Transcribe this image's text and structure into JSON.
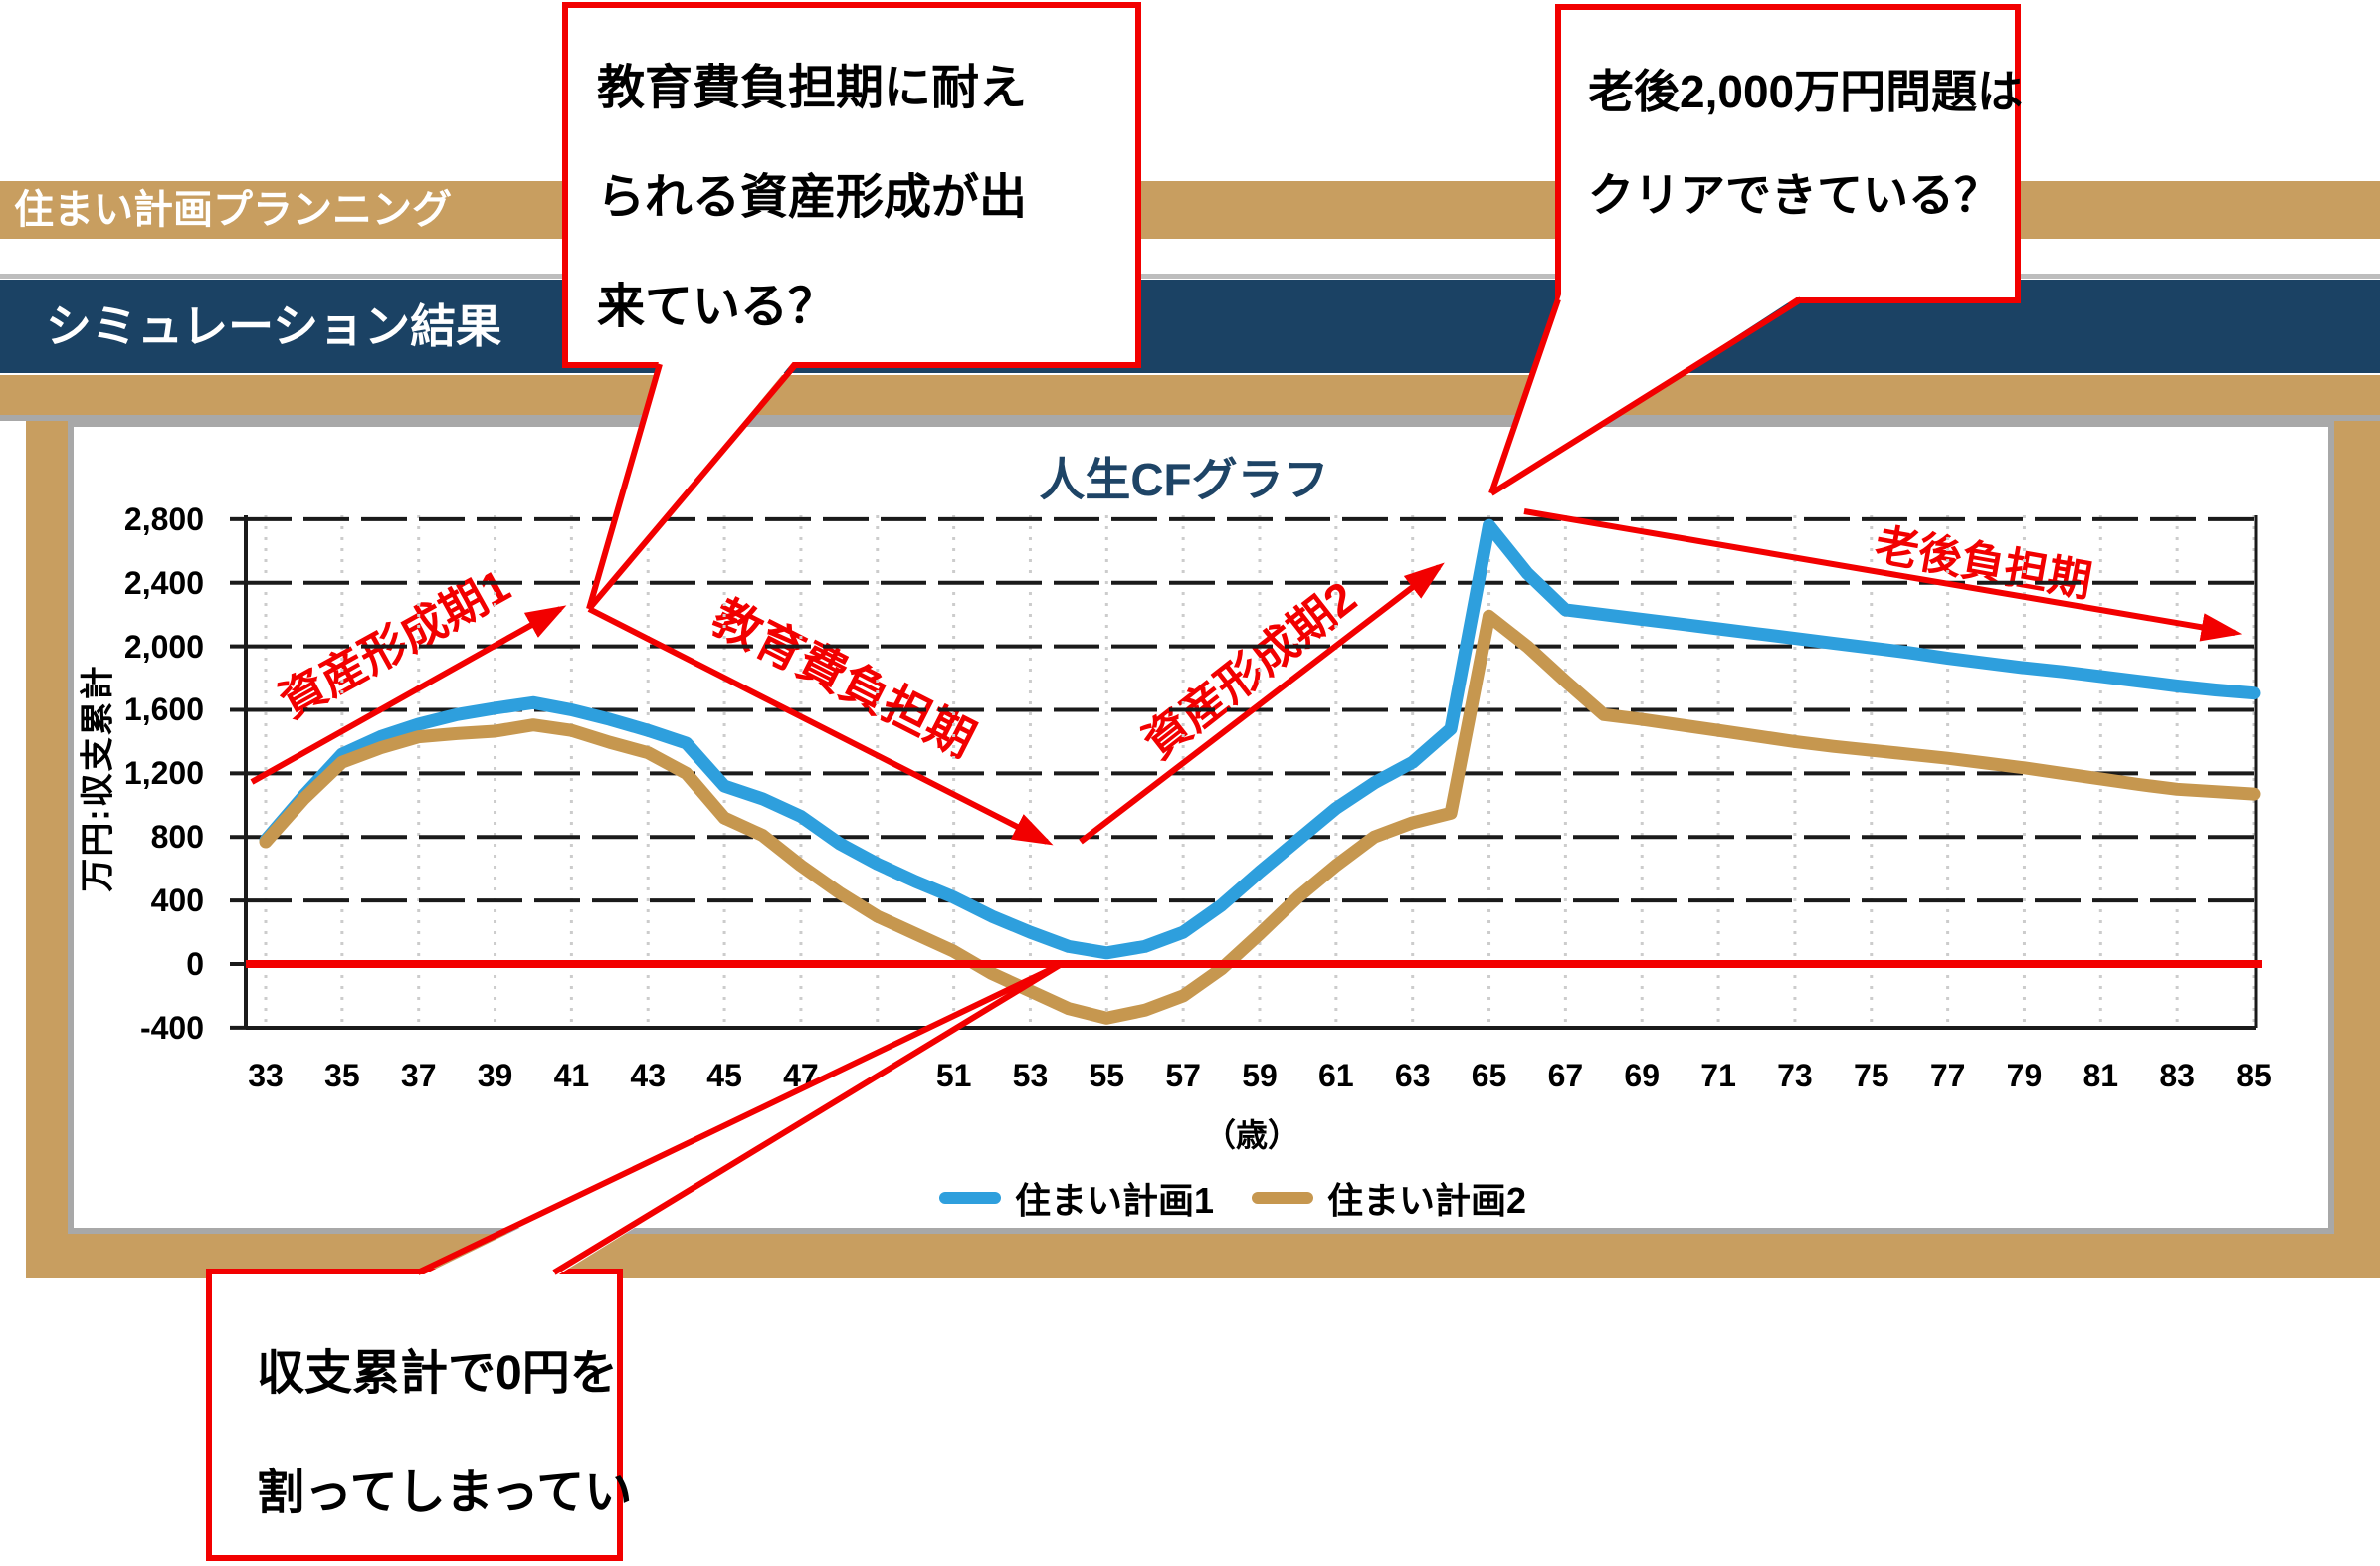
{
  "header": {
    "brand_bar": "住まい計画プランニング",
    "section_title": "シミュレーション結果"
  },
  "callouts": {
    "education": {
      "lines": [
        "教育費負担期に耐え",
        "られる資産形成が出",
        "来ている？"
      ]
    },
    "retirement": {
      "lines": [
        "老後2,000万円問題は",
        "クリアできている？"
      ]
    },
    "deficit": {
      "lines": [
        "収支累計で0円を",
        "割ってしまってい"
      ]
    }
  },
  "annotations": {
    "phase1": "資産形成期1",
    "education_period": "教育費負担期",
    "phase2": "資産形成期2",
    "retirement_period": "老後負担期"
  },
  "chart_data": {
    "type": "line",
    "title": "人生CFグラフ",
    "y_axis_title": "万円:収支累計",
    "x_axis_unit": "（歳）",
    "ylim": [
      -400,
      2800
    ],
    "grid": "on",
    "legend_position": "bottom",
    "zero_line_color": "#F20000",
    "y_tick_labels": [
      "2,800",
      "2,400",
      "2,000",
      "1,600",
      "1,200",
      "800",
      "400",
      "0",
      "-400"
    ],
    "x_tick_labels": [
      33,
      35,
      37,
      39,
      41,
      43,
      45,
      47,
      51,
      53,
      55,
      57,
      59,
      61,
      63,
      65,
      67,
      69,
      71,
      73,
      75,
      77,
      79,
      81,
      83,
      85
    ],
    "x": [
      33,
      34,
      35,
      36,
      37,
      38,
      39,
      40,
      41,
      42,
      43,
      44,
      45,
      46,
      47,
      48,
      49,
      50,
      51,
      52,
      53,
      54,
      55,
      56,
      57,
      58,
      59,
      60,
      61,
      62,
      63,
      64,
      65,
      66,
      67,
      68,
      69,
      70,
      71,
      72,
      73,
      74,
      75,
      76,
      77,
      78,
      79,
      80,
      81,
      82,
      83,
      84,
      85
    ],
    "series": [
      {
        "name": "住まい計画1",
        "color": "#2E9FDD",
        "values": [
          780,
          1060,
          1320,
          1430,
          1510,
          1570,
          1610,
          1645,
          1600,
          1540,
          1470,
          1390,
          1120,
          1040,
          930,
          760,
          630,
          520,
          420,
          300,
          200,
          110,
          70,
          110,
          200,
          370,
          580,
          780,
          980,
          1140,
          1270,
          1480,
          2760,
          2460,
          2230,
          2200,
          2170,
          2140,
          2110,
          2080,
          2050,
          2020,
          1990,
          1960,
          1925,
          1895,
          1865,
          1840,
          1810,
          1780,
          1750,
          1725,
          1705
        ]
      },
      {
        "name": "住まい計画2",
        "color": "#C6974F",
        "values": [
          770,
          1040,
          1270,
          1360,
          1430,
          1450,
          1465,
          1505,
          1470,
          1395,
          1330,
          1200,
          920,
          810,
          620,
          450,
          300,
          190,
          80,
          -60,
          -170,
          -280,
          -340,
          -290,
          -200,
          -30,
          190,
          420,
          620,
          800,
          890,
          950,
          2190,
          2000,
          1780,
          1570,
          1540,
          1505,
          1470,
          1435,
          1400,
          1370,
          1345,
          1320,
          1295,
          1265,
          1235,
          1200,
          1165,
          1130,
          1100,
          1085,
          1070
        ]
      }
    ]
  }
}
